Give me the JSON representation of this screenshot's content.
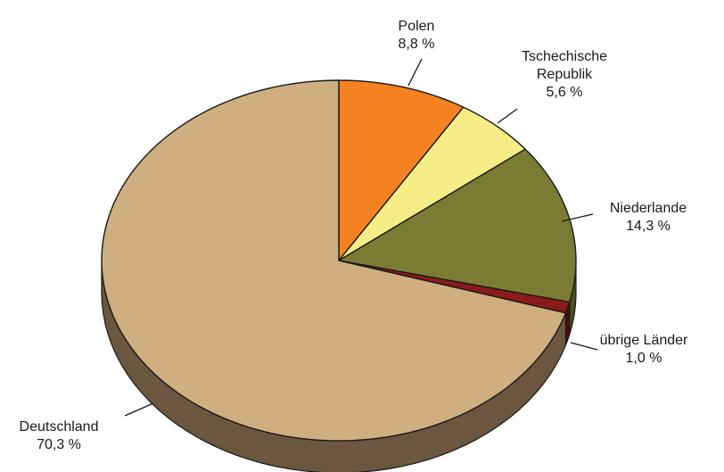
{
  "chart_data": {
    "type": "pie",
    "title": "",
    "slices": [
      {
        "label": "Polen",
        "value": 8.8,
        "value_label": "8,8 %",
        "color": "#f58220",
        "side_color": "#9a4f12"
      },
      {
        "label": "Tschechische Republik",
        "label_lines": [
          "Tschechische",
          "Republik"
        ],
        "value": 5.6,
        "value_label": "5,6 %",
        "color": "#f7ed86",
        "side_color": "#a59c4a"
      },
      {
        "label": "Niederlande",
        "value": 14.3,
        "value_label": "14,3 %",
        "color": "#7b7c34",
        "side_color": "#4d4e1d"
      },
      {
        "label": "übrige Länder",
        "value": 1.0,
        "value_label": "1,0 %",
        "color": "#8b1a1a",
        "side_color": "#4e0c0c"
      },
      {
        "label": "Deutschland",
        "value": 70.3,
        "value_label": "70,3 %",
        "color": "#cfae7f",
        "side_color": "#6b5640"
      }
    ],
    "start_angle": "12 o'clock",
    "direction": "clockwise",
    "style": "3d-pie",
    "legend": "none"
  }
}
